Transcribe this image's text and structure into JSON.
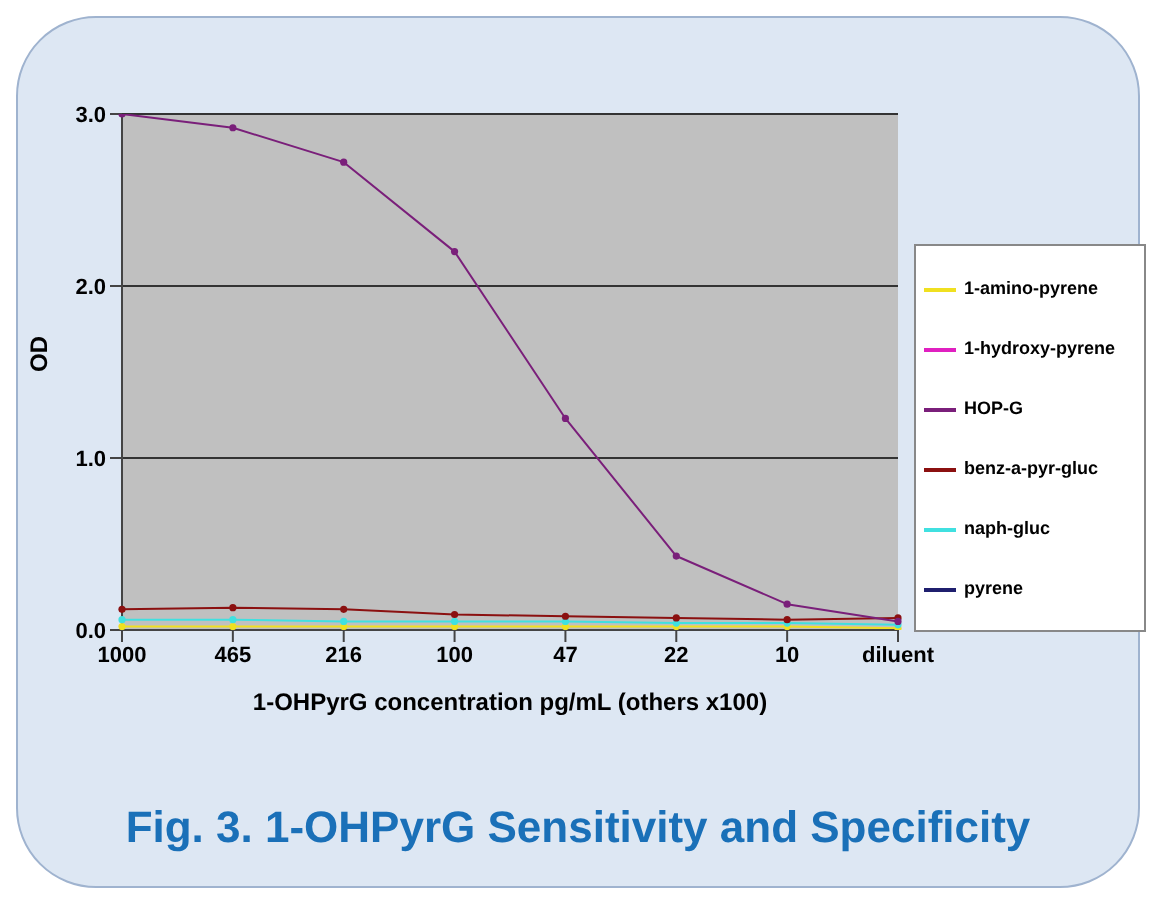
{
  "chart_data": {
    "type": "line",
    "title": "Fig. 3.  1-OHPyrG Sensitivity and Specificity",
    "xlabel": "1-OHPyrG concentration pg/mL (others x100)",
    "ylabel": "OD",
    "categories": [
      "1000",
      "465",
      "216",
      "100",
      "47",
      "22",
      "10",
      "diluent"
    ],
    "series": [
      {
        "name": "pyrene",
        "color": "#1f1f6e",
        "values": [
          null,
          null,
          null,
          null,
          null,
          null,
          null,
          null
        ]
      },
      {
        "name": "1-hydroxy-pyrene",
        "color": "#e020c0",
        "values": [
          null,
          null,
          null,
          null,
          null,
          null,
          null,
          null
        ]
      },
      {
        "name": "1-amino-pyrene",
        "color": "#f0e020",
        "values": [
          0.02,
          0.02,
          0.02,
          0.02,
          0.02,
          0.02,
          0.02,
          0.01
        ]
      },
      {
        "name": "naph-gluc",
        "color": "#40e0e0",
        "values": [
          0.06,
          0.06,
          0.05,
          0.05,
          0.05,
          0.04,
          0.04,
          0.03
        ]
      },
      {
        "name": "HOP-G",
        "color": "#7a1f7a",
        "values": [
          3.0,
          2.92,
          2.72,
          2.2,
          1.23,
          0.43,
          0.15,
          0.05
        ]
      },
      {
        "name": "benz-a-pyr-gluc",
        "color": "#8b1010",
        "values": [
          0.12,
          0.13,
          0.12,
          0.09,
          0.08,
          0.07,
          0.06,
          0.07
        ]
      }
    ],
    "ylim": [
      0,
      3
    ],
    "yticks": [
      {
        "value": 0,
        "label": "0.0"
      },
      {
        "value": 1,
        "label": "1.0"
      },
      {
        "value": 2,
        "label": "2.0"
      },
      {
        "value": 3,
        "label": "3.0"
      }
    ],
    "grid": "y",
    "legend": "right",
    "marker": "circle",
    "line_style": "solid"
  }
}
